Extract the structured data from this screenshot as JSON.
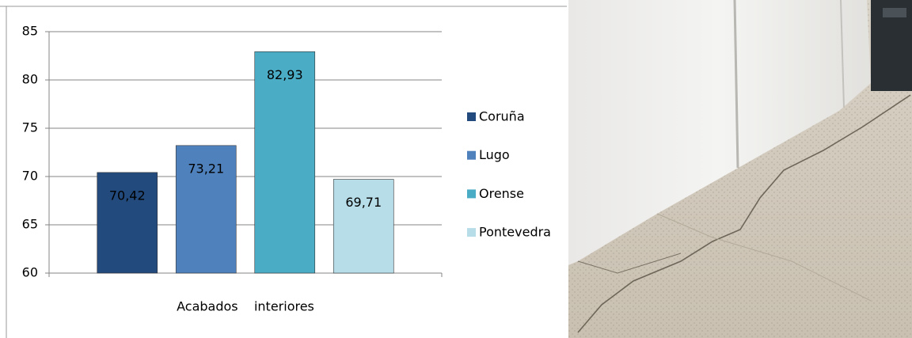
{
  "chart_data": {
    "type": "bar",
    "categories": [
      "Acabados    interiores"
    ],
    "series": [
      {
        "name": "Coruña",
        "color": "#234a7c",
        "values": [
          70.42
        ],
        "value_labels": [
          "70,42"
        ]
      },
      {
        "name": "Lugo",
        "color": "#4f81bd",
        "values": [
          73.21
        ],
        "value_labels": [
          "73,21"
        ]
      },
      {
        "name": "Orense",
        "color": "#4bacc6",
        "values": [
          82.93
        ],
        "value_labels": [
          "82,93"
        ]
      },
      {
        "name": "Pontevedra",
        "color": "#b7dde8",
        "values": [
          69.71
        ],
        "value_labels": [
          "69,71"
        ]
      }
    ],
    "ylim": [
      60,
      85
    ],
    "yticks": [
      60,
      65,
      70,
      75,
      80,
      85
    ],
    "grid": true,
    "legend": "right"
  }
}
